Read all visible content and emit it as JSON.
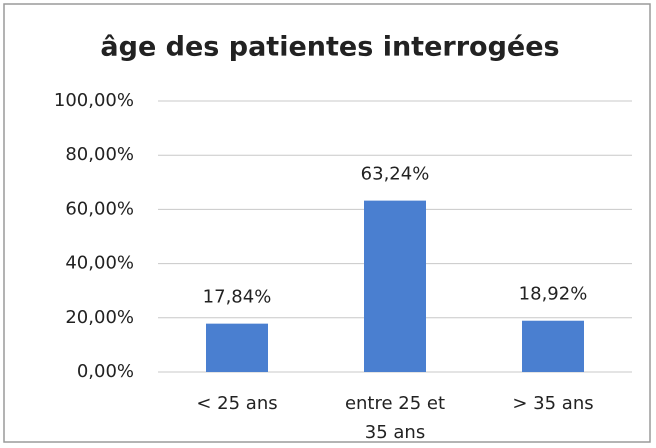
{
  "chart_data": {
    "type": "bar",
    "title": "âge des patientes interrogées",
    "categories": [
      "< 25 ans",
      "entre 25 et 35 ans",
      "> 35 ans"
    ],
    "values": [
      17.84,
      63.24,
      18.92
    ],
    "value_labels": [
      "17,84%",
      "63,24%",
      "18,92%"
    ],
    "color": "#4a7fd0",
    "ylim": [
      0,
      100
    ],
    "yticks": [
      {
        "value": 0,
        "label": "0,00%"
      },
      {
        "value": 20,
        "label": "20,00%"
      },
      {
        "value": 40,
        "label": "40,00%"
      },
      {
        "value": 60,
        "label": "60,00%"
      },
      {
        "value": 80,
        "label": "80,00%"
      },
      {
        "value": 100,
        "label": "100,00%"
      }
    ],
    "grid": true
  }
}
